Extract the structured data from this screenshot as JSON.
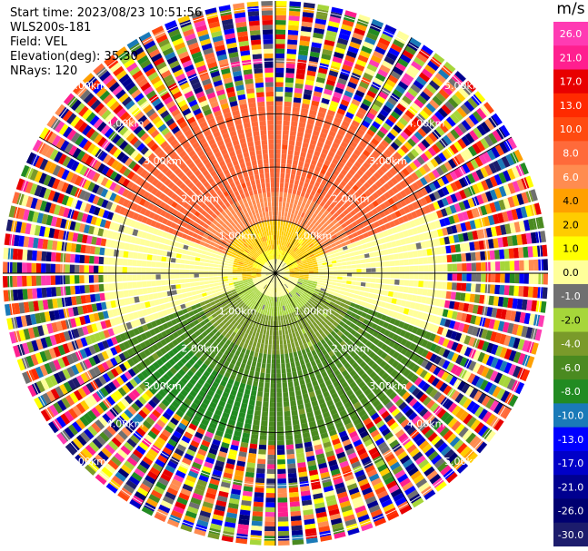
{
  "header": {
    "start_time": "Start time: 2023/08/23 10:51:56",
    "instrument": "WLS200s-181",
    "field": "Field: VEL",
    "elevation": "Elevation(deg): 35.30",
    "nrays": "NRays: 120"
  },
  "chart_data": {
    "type": "heatmap",
    "projection": "polar-ppi",
    "n_rays": 120,
    "range_rings_km": [
      1.0,
      2.0,
      3.0,
      4.0,
      5.0
    ],
    "range_ring_labels": [
      "1.00km",
      "2.00km",
      "3.00km",
      "4.00km",
      "5.00km"
    ],
    "spokes_deg": [
      0,
      30,
      60,
      90,
      120,
      150,
      180,
      210,
      240,
      270,
      300,
      330
    ],
    "valid_data_range_km": 3.2,
    "field_summary": [
      {
        "region": "north beyond 1.5 km",
        "velocity_ms": 8
      },
      {
        "region": "north 1.0-1.5 km",
        "velocity_ms": 6
      },
      {
        "region": "center / near-north",
        "velocity_ms": 2
      },
      {
        "region": "east-west band",
        "velocity_ms": 0
      },
      {
        "region": "near-south",
        "velocity_ms": -3
      },
      {
        "region": "south beyond 1.5 km",
        "velocity_ms": -6
      },
      {
        "region": "far south-west",
        "velocity_ms": -8
      },
      {
        "region": "beyond 3.2 km",
        "velocity_ms": "noise"
      }
    ],
    "colorbar": {
      "unit": "m/s",
      "ticks": [
        "26.0",
        "21.0",
        "17.0",
        "13.0",
        "10.0",
        "8.0",
        "6.0",
        "4.0",
        "2.0",
        "1.0",
        "0.0",
        "-1.0",
        "-2.0",
        "-4.0",
        "-6.0",
        "-8.0",
        "-10.0",
        "-13.0",
        "-17.0",
        "-21.0",
        "-26.0",
        "-30.0"
      ],
      "colors": [
        "#ff3bb3",
        "#ff1f8f",
        "#e80000",
        "#ff2a00",
        "#ff4a10",
        "#ff6a3a",
        "#ff8c50",
        "#ffa000",
        "#ffcc00",
        "#ffff00",
        "#ffff9a",
        "#707070",
        "#a6d63a",
        "#7a9a2a",
        "#4a8a20",
        "#228b22",
        "#1a7ab8",
        "#0000ff",
        "#0000c8",
        "#000090",
        "#000070",
        "#1c1c6c"
      ]
    }
  }
}
